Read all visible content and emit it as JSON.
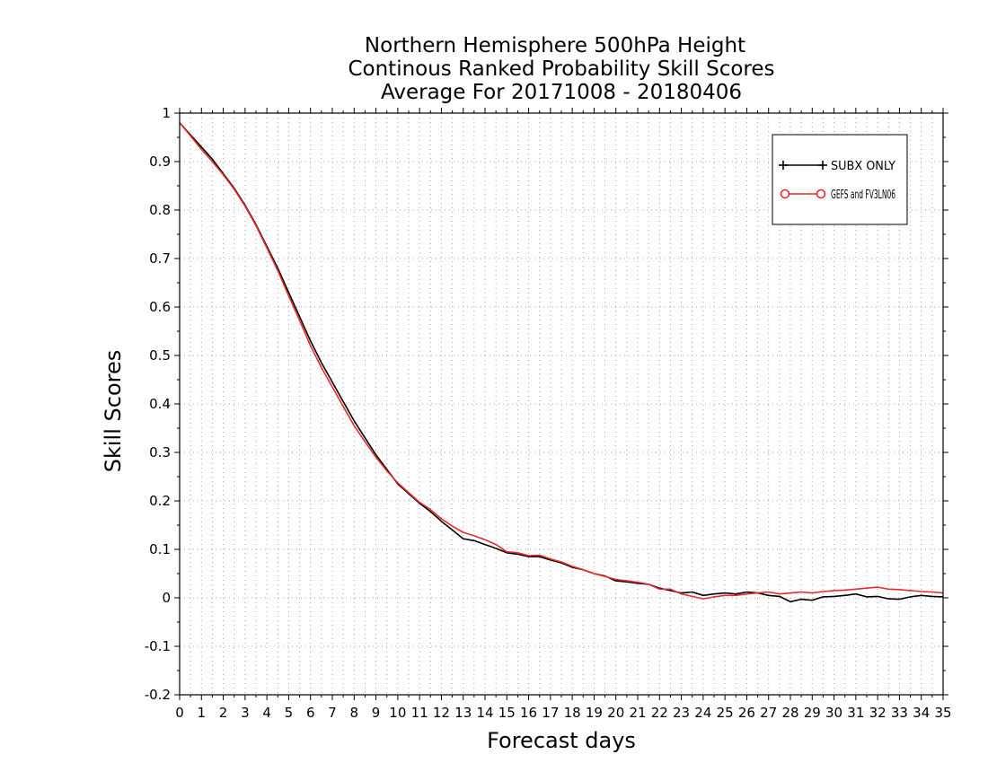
{
  "chart_data": {
    "type": "line",
    "title_lines": [
      "Northern Hemisphere 500hPa Height",
      "Continous Ranked Probability Skill Scores",
      "Average For 20171008 - 20180406"
    ],
    "xlabel": "Forecast days",
    "ylabel": "Skill Scores",
    "xlim": [
      0,
      35
    ],
    "ylim": [
      -0.2,
      1
    ],
    "xticks": [
      0,
      1,
      2,
      3,
      4,
      5,
      6,
      7,
      8,
      9,
      10,
      11,
      12,
      13,
      14,
      15,
      16,
      17,
      18,
      19,
      20,
      21,
      22,
      23,
      24,
      25,
      26,
      27,
      28,
      29,
      30,
      31,
      32,
      33,
      34,
      35
    ],
    "yticks": [
      -0.2,
      -0.1,
      0,
      0.1,
      0.2,
      0.3,
      0.4,
      0.5,
      0.6,
      0.7,
      0.8,
      0.9,
      1
    ],
    "ytick_labels": [
      "-0.2",
      "-0.1",
      "0",
      "0.1",
      "0.2",
      "0.3",
      "0.4",
      "0.5",
      "0.6",
      "0.7",
      "0.8",
      "0.9",
      "1"
    ],
    "grid": true,
    "legend_position": "top-right",
    "series": [
      {
        "name": "SUBX ONLY",
        "color": "#000000",
        "marker": "plus",
        "x": [
          0,
          0.5,
          1,
          1.5,
          2,
          2.5,
          3,
          3.5,
          4,
          4.5,
          5,
          5.5,
          6,
          6.5,
          7,
          7.5,
          8,
          8.5,
          9,
          9.5,
          10,
          10.5,
          11,
          11.5,
          12,
          12.5,
          13,
          13.5,
          14,
          14.5,
          15,
          15.5,
          16,
          16.5,
          17,
          17.5,
          18,
          18.5,
          19,
          19.5,
          20,
          20.5,
          21,
          21.5,
          22,
          22.5,
          23,
          23.5,
          24,
          24.5,
          25,
          25.5,
          26,
          26.5,
          27,
          27.5,
          28,
          28.5,
          29,
          29.5,
          30,
          30.5,
          31,
          31.5,
          32,
          32.5,
          33,
          33.5,
          34,
          34.5,
          35
        ],
        "y": [
          0.98,
          0.955,
          0.93,
          0.905,
          0.875,
          0.845,
          0.81,
          0.77,
          0.725,
          0.68,
          0.63,
          0.58,
          0.53,
          0.485,
          0.445,
          0.405,
          0.365,
          0.33,
          0.295,
          0.265,
          0.235,
          0.215,
          0.195,
          0.178,
          0.158,
          0.14,
          0.122,
          0.118,
          0.11,
          0.102,
          0.093,
          0.09,
          0.085,
          0.085,
          0.078,
          0.072,
          0.063,
          0.058,
          0.05,
          0.045,
          0.035,
          0.033,
          0.03,
          0.028,
          0.02,
          0.015,
          0.01,
          0.012,
          0.005,
          0.008,
          0.01,
          0.008,
          0.012,
          0.01,
          0.005,
          0.003,
          -0.008,
          -0.003,
          -0.005,
          0.002,
          0.003,
          0.005,
          0.008,
          0.002,
          0.003,
          -0.002,
          -0.003,
          0.002,
          0.005,
          0.003,
          0.002
        ]
      },
      {
        "name": "GEFS and FV3LN06",
        "color": "#e8292d",
        "marker": "circle",
        "x": [
          0,
          0.5,
          1,
          1.5,
          2,
          2.5,
          3,
          3.5,
          4,
          4.5,
          5,
          5.5,
          6,
          6.5,
          7,
          7.5,
          8,
          8.5,
          9,
          9.5,
          10,
          10.5,
          11,
          11.5,
          12,
          12.5,
          13,
          13.5,
          14,
          14.5,
          15,
          15.5,
          16,
          16.5,
          17,
          17.5,
          18,
          18.5,
          19,
          19.5,
          20,
          20.5,
          21,
          21.5,
          22,
          22.5,
          23,
          23.5,
          24,
          24.5,
          25,
          25.5,
          26,
          26.5,
          27,
          27.5,
          28,
          28.5,
          29,
          29.5,
          30,
          30.5,
          31,
          31.5,
          32,
          32.5,
          33,
          33.5,
          34,
          34.5,
          35
        ],
        "y": [
          0.98,
          0.953,
          0.925,
          0.9,
          0.873,
          0.843,
          0.808,
          0.768,
          0.722,
          0.675,
          0.623,
          0.572,
          0.52,
          0.475,
          0.435,
          0.395,
          0.355,
          0.322,
          0.29,
          0.262,
          0.237,
          0.217,
          0.197,
          0.182,
          0.163,
          0.148,
          0.135,
          0.128,
          0.12,
          0.11,
          0.095,
          0.093,
          0.087,
          0.088,
          0.08,
          0.074,
          0.065,
          0.058,
          0.05,
          0.044,
          0.038,
          0.035,
          0.032,
          0.028,
          0.018,
          0.018,
          0.008,
          0.003,
          -0.002,
          0.002,
          0.005,
          0.005,
          0.008,
          0.01,
          0.012,
          0.008,
          0.01,
          0.012,
          0.01,
          0.013,
          0.015,
          0.016,
          0.018,
          0.02,
          0.022,
          0.018,
          0.017,
          0.015,
          0.013,
          0.012,
          0.01
        ]
      }
    ]
  }
}
